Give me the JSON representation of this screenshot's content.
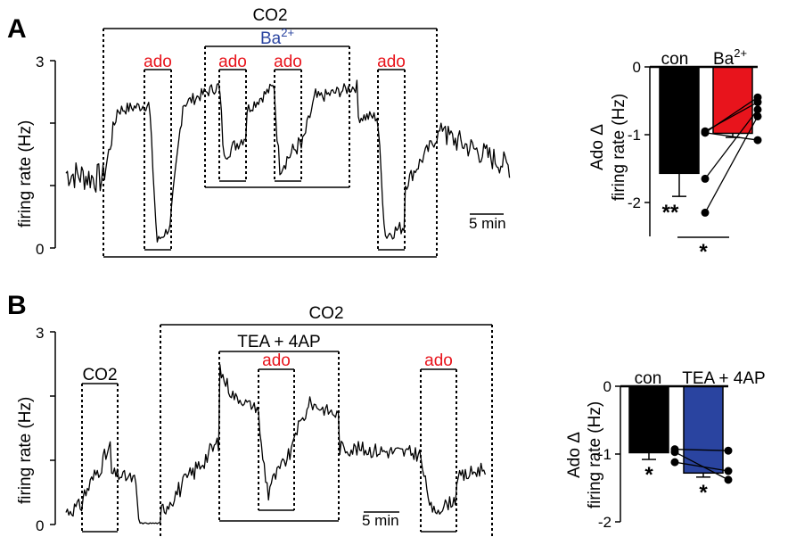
{
  "panels": [
    {
      "letter": "A",
      "trace": {
        "ylabel": "firing rate (Hz)",
        "yticks": [
          "0",
          "3"
        ],
        "scalebar": "5 min",
        "co2_label": "CO2",
        "drug_label_main": "Ba",
        "drug_label_sup": "2+",
        "ado_labels": [
          "ado",
          "ado",
          "ado",
          "ado"
        ]
      },
      "chart_data": {
        "type": "bar",
        "ylabel_line1": "Ado Δ",
        "ylabel_line2": "firing rate (Hz)",
        "categories": [
          "con",
          "Ba2+"
        ],
        "category_labels": [
          "con",
          "Ba"
        ],
        "category_sup": [
          "",
          "2+"
        ],
        "values": [
          -1.57,
          -0.98
        ],
        "errors": [
          0.34,
          0.06
        ],
        "colors": [
          "#000000",
          "#e8141c"
        ],
        "ylim": [
          -2.5,
          0
        ],
        "yticks": [
          "0",
          "-1",
          "-2"
        ],
        "pairs": [
          [
            -0.97,
            -0.45
          ],
          [
            -0.95,
            -0.52
          ],
          [
            -1.65,
            -0.63
          ],
          [
            -2.15,
            -0.73
          ],
          [
            -0.97,
            -1.08
          ]
        ],
        "annotations": {
          "con_sig": "**",
          "pair_sig": "*"
        }
      }
    },
    {
      "letter": "B",
      "trace": {
        "ylabel": "firing rate (Hz)",
        "yticks": [
          "0",
          "3"
        ],
        "scalebar": "5 min",
        "co2_label_small": "CO2",
        "co2_label": "CO2",
        "drug_label": "TEA + 4AP",
        "ado_labels": [
          "ado",
          "ado"
        ]
      },
      "chart_data": {
        "type": "bar",
        "ylabel_line1": "Ado Δ",
        "ylabel_line2": "firing rate (Hz)",
        "categories": [
          "con",
          "TEA + 4AP"
        ],
        "values": [
          -0.98,
          -1.28
        ],
        "errors": [
          0.1,
          0.06
        ],
        "colors": [
          "#000000",
          "#2a44a0"
        ],
        "ylim": [
          -2,
          0
        ],
        "yticks": [
          "0",
          "-1",
          "-2"
        ],
        "pairs": [
          [
            -0.93,
            -0.95
          ],
          [
            -1.12,
            -1.25
          ],
          [
            -0.97,
            -1.38
          ]
        ],
        "annotations": {
          "con_sig": "*",
          "drug_sig": "*"
        }
      }
    }
  ]
}
